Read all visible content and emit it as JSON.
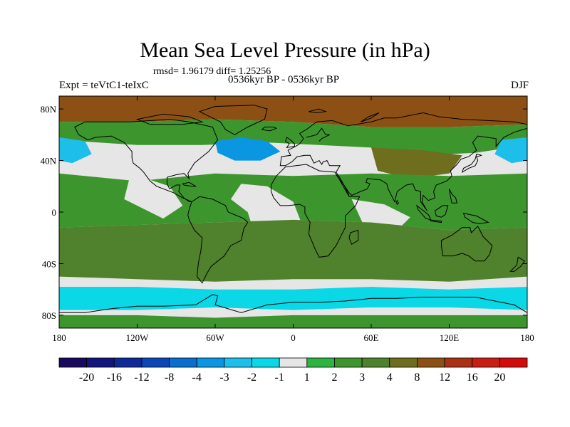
{
  "title": "Mean Sea Level Pressure (in hPa)",
  "stats": "rmsd= 1.96179 diff= 1.25256",
  "expt": "Expt = teVtC1-teIxC",
  "period": "0536kyr BP - 0536kyr BP",
  "season": "DJF",
  "chart_data": {
    "type": "heatmap",
    "title": "Mean Sea Level Pressure (in hPa)",
    "variable": "MSLP difference",
    "units": "hPa",
    "projection": "cylindrical equidistant",
    "x_range": [
      -180,
      180
    ],
    "y_range": [
      -90,
      90
    ],
    "x_ticks": [
      -180,
      -120,
      -60,
      0,
      60,
      120,
      180
    ],
    "x_tick_labels": [
      "180",
      "120W",
      "60W",
      "0",
      "60E",
      "120E",
      "180"
    ],
    "y_ticks": [
      80,
      40,
      0,
      -40,
      -80
    ],
    "y_tick_labels": [
      "80N",
      "40N",
      "0",
      "40S",
      "80S"
    ],
    "contour_levels": [
      -20,
      -16,
      -12,
      -8,
      -4,
      -3,
      -2,
      -1,
      1,
      2,
      3,
      4,
      8,
      12,
      16,
      20
    ],
    "level_labels": [
      "-20",
      "-16",
      "-12",
      "-8",
      "-4",
      "-3",
      "-2",
      "-1",
      "1",
      "2",
      "3",
      "4",
      "8",
      "12",
      "16",
      "20"
    ],
    "colors": [
      "#1a0a5e",
      "#14147d",
      "#0f2a96",
      "#0c46b4",
      "#0a6ecd",
      "#0a96e1",
      "#1ebeeb",
      "#0ad8e6",
      "#e6e6e6",
      "#2db441",
      "#3c962d",
      "#50822d",
      "#6e6e1e",
      "#8c5014",
      "#aa3214",
      "#c81e14",
      "#d20a0a"
    ],
    "regions": [
      {
        "desc": "Arctic high anomaly",
        "value": 10,
        "poly": [
          [
            -180,
            90
          ],
          [
            180,
            90
          ],
          [
            180,
            68
          ],
          [
            120,
            66
          ],
          [
            60,
            66
          ],
          [
            0,
            70
          ],
          [
            -60,
            72
          ],
          [
            -120,
            70
          ],
          [
            -180,
            70
          ]
        ]
      },
      {
        "desc": "Northern mid-latitude positive band",
        "value": 2.5,
        "poly": [
          [
            -180,
            70
          ],
          [
            -120,
            70
          ],
          [
            -60,
            72
          ],
          [
            0,
            70
          ],
          [
            60,
            66
          ],
          [
            120,
            66
          ],
          [
            180,
            68
          ],
          [
            180,
            52
          ],
          [
            140,
            46
          ],
          [
            100,
            44
          ],
          [
            60,
            50
          ],
          [
            20,
            52
          ],
          [
            -20,
            54
          ],
          [
            -70,
            52
          ],
          [
            -120,
            52
          ],
          [
            -180,
            56
          ]
        ]
      },
      {
        "desc": "North Atlantic low anomaly",
        "value": -3.5,
        "poly": [
          [
            -60,
            55
          ],
          [
            -40,
            58
          ],
          [
            -20,
            55
          ],
          [
            -10,
            47
          ],
          [
            -25,
            40
          ],
          [
            -45,
            40
          ],
          [
            -58,
            46
          ]
        ]
      },
      {
        "desc": "North Pacific low (east)",
        "value": -2.5,
        "poly": [
          [
            -180,
            58
          ],
          [
            -160,
            55
          ],
          [
            -155,
            45
          ],
          [
            -170,
            38
          ],
          [
            -180,
            40
          ]
        ]
      },
      {
        "desc": "North Pacific low (west)",
        "value": -2.5,
        "poly": [
          [
            180,
            58
          ],
          [
            160,
            56
          ],
          [
            155,
            45
          ],
          [
            168,
            38
          ],
          [
            180,
            40
          ]
        ]
      },
      {
        "desc": "Asian high anomaly",
        "value": 6,
        "poly": [
          [
            60,
            50
          ],
          [
            100,
            48
          ],
          [
            130,
            44
          ],
          [
            120,
            30
          ],
          [
            90,
            26
          ],
          [
            65,
            32
          ]
        ]
      },
      {
        "desc": "Tropical positive band",
        "value": 2.2,
        "poly": [
          [
            -180,
            30
          ],
          [
            -120,
            24
          ],
          [
            -60,
            30
          ],
          [
            0,
            28
          ],
          [
            60,
            30
          ],
          [
            120,
            28
          ],
          [
            180,
            30
          ],
          [
            180,
            -12
          ],
          [
            120,
            -14
          ],
          [
            60,
            -8
          ],
          [
            0,
            -6
          ],
          [
            -60,
            -8
          ],
          [
            -120,
            -10
          ],
          [
            -180,
            -12
          ]
        ]
      },
      {
        "desc": "Tropical Atlantic near-zero",
        "value": 0,
        "poly": [
          [
            -40,
            22
          ],
          [
            -20,
            20
          ],
          [
            0,
            8
          ],
          [
            10,
            -18
          ],
          [
            -5,
            -25
          ],
          [
            -28,
            -22
          ],
          [
            -35,
            0
          ],
          [
            -48,
            10
          ]
        ]
      },
      {
        "desc": "Eastern Pacific near-zero",
        "value": 0,
        "poly": [
          [
            -125,
            30
          ],
          [
            -95,
            20
          ],
          [
            -85,
            5
          ],
          [
            -100,
            -5
          ],
          [
            -130,
            10
          ]
        ]
      },
      {
        "desc": "Indian Ocean near-zero",
        "value": 0,
        "poly": [
          [
            45,
            10
          ],
          [
            70,
            6
          ],
          [
            90,
            -4
          ],
          [
            80,
            -14
          ],
          [
            55,
            -12
          ]
        ]
      },
      {
        "desc": "Southern mid-latitude positive band",
        "value": 3.2,
        "poly": [
          [
            -180,
            -12
          ],
          [
            -120,
            -10
          ],
          [
            -60,
            -8
          ],
          [
            0,
            -6
          ],
          [
            60,
            -8
          ],
          [
            120,
            -14
          ],
          [
            180,
            -12
          ],
          [
            180,
            -50
          ],
          [
            120,
            -54
          ],
          [
            60,
            -52
          ],
          [
            0,
            -52
          ],
          [
            -60,
            -54
          ],
          [
            -120,
            -52
          ],
          [
            -180,
            -50
          ]
        ]
      },
      {
        "desc": "Southern Ocean negative band",
        "value": -1.5,
        "poly": [
          [
            -180,
            -58
          ],
          [
            -120,
            -58
          ],
          [
            -60,
            -60
          ],
          [
            0,
            -60
          ],
          [
            60,
            -58
          ],
          [
            120,
            -60
          ],
          [
            180,
            -58
          ],
          [
            180,
            -76
          ],
          [
            120,
            -74
          ],
          [
            60,
            -74
          ],
          [
            0,
            -76
          ],
          [
            -60,
            -74
          ],
          [
            -120,
            -76
          ],
          [
            -180,
            -76
          ]
        ]
      },
      {
        "desc": "Antarctic positive",
        "value": 2.2,
        "poly": [
          [
            -180,
            -80
          ],
          [
            -120,
            -80
          ],
          [
            -60,
            -82
          ],
          [
            0,
            -80
          ],
          [
            60,
            -80
          ],
          [
            120,
            -80
          ],
          [
            180,
            -80
          ],
          [
            180,
            -90
          ],
          [
            -180,
            -90
          ]
        ]
      }
    ]
  }
}
